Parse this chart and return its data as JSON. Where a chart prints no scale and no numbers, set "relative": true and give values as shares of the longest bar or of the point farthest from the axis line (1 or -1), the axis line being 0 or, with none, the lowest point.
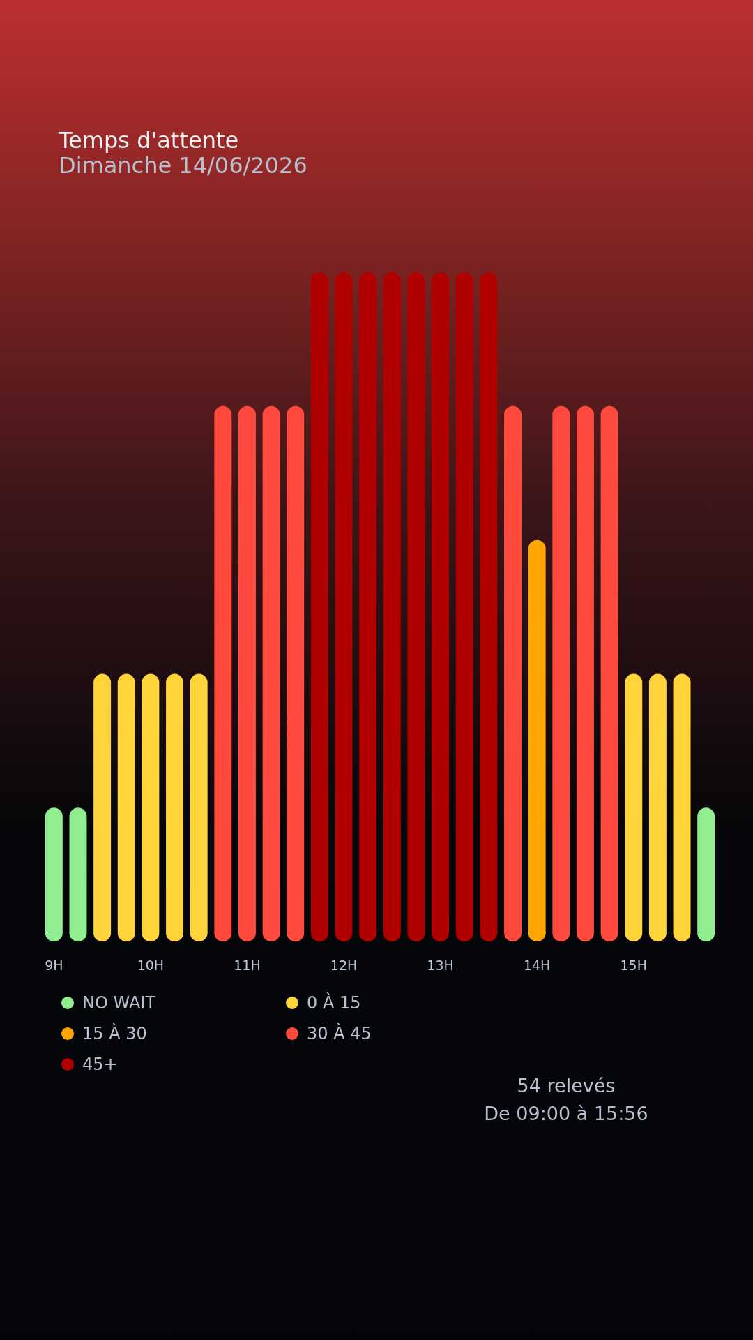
{
  "chart_data": {
    "type": "bar",
    "title": "Temps d'attente",
    "subtitle": "Dimanche 14/06/2026",
    "relative": true,
    "grid": false,
    "legend": "bottom left",
    "categories": [
      "9H",
      null,
      null,
      null,
      "10H",
      null,
      null,
      null,
      "11H",
      null,
      null,
      null,
      "12H",
      null,
      null,
      null,
      "13H",
      null,
      null,
      null,
      "14H",
      null,
      null,
      null,
      "15H",
      null,
      null,
      null
    ],
    "series": [
      {
        "name": "NO WAIT",
        "color": "#90ee90",
        "values": [
          0.2,
          0.2,
          null,
          null,
          null,
          null,
          null,
          null,
          null,
          null,
          null,
          null,
          null,
          null,
          null,
          null,
          null,
          null,
          null,
          null,
          null,
          null,
          null,
          null,
          null,
          null,
          null,
          0.2
        ]
      },
      {
        "name": "0 À 15",
        "color": "#ffd43b",
        "values": [
          null,
          null,
          0.4,
          0.4,
          0.4,
          0.4,
          0.4,
          null,
          null,
          null,
          null,
          null,
          null,
          null,
          null,
          null,
          null,
          null,
          null,
          null,
          null,
          null,
          null,
          null,
          0.4,
          0.4,
          0.4,
          null
        ]
      },
      {
        "name": "15 À 30",
        "color": "#ffa500",
        "values": [
          null,
          null,
          null,
          null,
          null,
          null,
          null,
          null,
          null,
          null,
          null,
          null,
          null,
          null,
          null,
          null,
          null,
          null,
          null,
          null,
          0.6,
          null,
          null,
          null,
          null,
          null,
          null,
          null
        ]
      },
      {
        "name": "30 À 45",
        "color": "#ff4a3d",
        "values": [
          null,
          null,
          null,
          null,
          null,
          null,
          null,
          0.8,
          0.8,
          0.8,
          0.8,
          null,
          null,
          null,
          null,
          null,
          null,
          null,
          null,
          0.8,
          null,
          0.8,
          0.8,
          0.8,
          null,
          null,
          null,
          null
        ]
      },
      {
        "name": "45+",
        "color": "#b00000",
        "values": [
          null,
          null,
          null,
          null,
          null,
          null,
          null,
          null,
          null,
          null,
          null,
          1,
          1,
          1,
          1,
          1,
          1,
          1,
          1,
          null,
          null,
          null,
          null,
          null,
          null,
          null,
          null,
          null
        ]
      }
    ],
    "annotations": [
      "54 relevés",
      "De 09:00 à 15:56"
    ]
  }
}
